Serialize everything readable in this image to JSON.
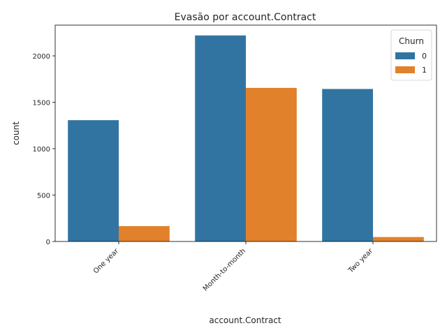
{
  "chart_data": {
    "type": "bar",
    "title": "Evasão por account.Contract",
    "xlabel": "account.Contract",
    "ylabel": "count",
    "categories": [
      "One year",
      "Month-to-month",
      "Two year"
    ],
    "series": [
      {
        "name": "0",
        "values": [
          1307,
          2220,
          1643
        ],
        "color": "#3274a1"
      },
      {
        "name": "1",
        "values": [
          166,
          1655,
          48
        ],
        "color": "#e1812c"
      }
    ],
    "ylim": [
      0,
      2331
    ],
    "yticks": [
      0,
      500,
      1000,
      1500,
      2000
    ],
    "legend": {
      "title": "Churn",
      "position": "top-right"
    },
    "grid": false
  }
}
